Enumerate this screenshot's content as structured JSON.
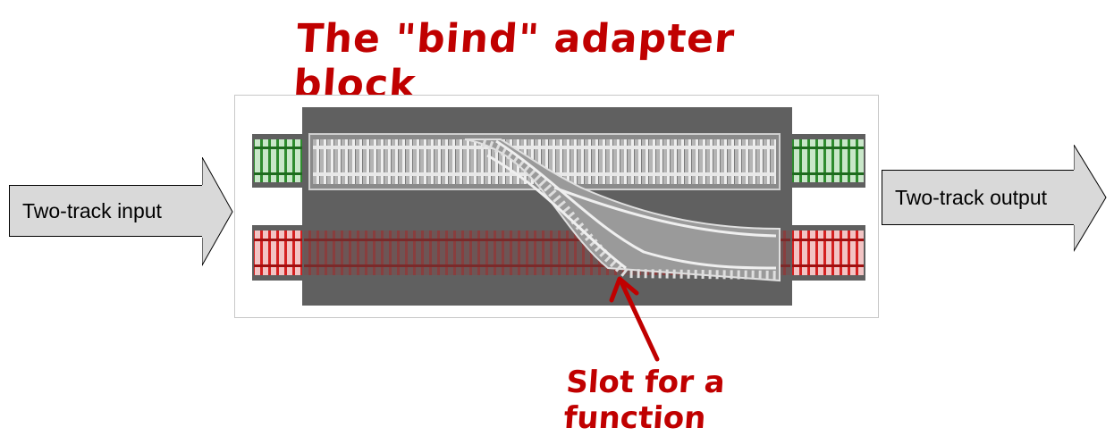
{
  "title": "The \"bind\" adapter block",
  "input_label": "Two-track input",
  "output_label": "Two-track output",
  "annotation": "Slot for a function",
  "colors": {
    "annotation_red": "#c00000",
    "arrow_fill": "#d9d9d9",
    "block_gray": "#5f5f5f",
    "success_track": "#2e8b2e",
    "failure_track": "#d42020"
  }
}
